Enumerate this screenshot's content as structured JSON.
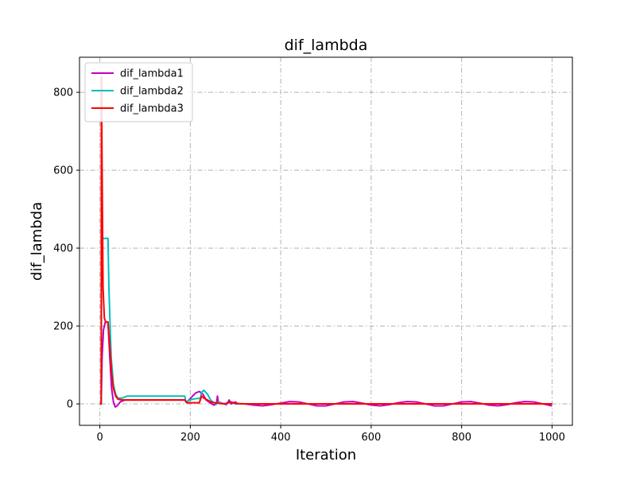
{
  "chart_data": {
    "type": "line",
    "title": "dif_lambda",
    "xlabel": "Iteration",
    "ylabel": "dif_lambda",
    "xlim": [
      -45,
      1045
    ],
    "ylim": [
      -55,
      890
    ],
    "xticks": [
      0,
      200,
      400,
      600,
      800,
      1000
    ],
    "yticks": [
      0,
      200,
      400,
      600,
      800
    ],
    "grid": true,
    "legend_position": "top-left",
    "series": [
      {
        "name": "dif_lambda1",
        "color": "#bf00bf",
        "points": [
          [
            0,
            0
          ],
          [
            3,
            0
          ],
          [
            5,
            120
          ],
          [
            8,
            190
          ],
          [
            12,
            210
          ],
          [
            18,
            210
          ],
          [
            22,
            120
          ],
          [
            26,
            40
          ],
          [
            30,
            5
          ],
          [
            34,
            -8
          ],
          [
            38,
            -5
          ],
          [
            45,
            5
          ],
          [
            55,
            10
          ],
          [
            70,
            10
          ],
          [
            100,
            10
          ],
          [
            150,
            10
          ],
          [
            188,
            10
          ],
          [
            192,
            5
          ],
          [
            197,
            10
          ],
          [
            205,
            20
          ],
          [
            212,
            28
          ],
          [
            220,
            32
          ],
          [
            228,
            25
          ],
          [
            235,
            10
          ],
          [
            245,
            2
          ],
          [
            252,
            -3
          ],
          [
            258,
            0
          ],
          [
            260,
            20
          ],
          [
            262,
            5
          ],
          [
            270,
            2
          ],
          [
            280,
            -2
          ],
          [
            286,
            10
          ],
          [
            290,
            0
          ],
          [
            300,
            5
          ],
          [
            305,
            0
          ],
          [
            320,
            0
          ],
          [
            340,
            -3
          ],
          [
            360,
            -5
          ],
          [
            380,
            -2
          ],
          [
            400,
            2
          ],
          [
            420,
            6
          ],
          [
            440,
            5
          ],
          [
            460,
            0
          ],
          [
            480,
            -5
          ],
          [
            500,
            -5
          ],
          [
            520,
            0
          ],
          [
            540,
            5
          ],
          [
            560,
            6
          ],
          [
            580,
            2
          ],
          [
            600,
            -3
          ],
          [
            620,
            -5
          ],
          [
            640,
            -2
          ],
          [
            660,
            3
          ],
          [
            680,
            6
          ],
          [
            700,
            5
          ],
          [
            720,
            0
          ],
          [
            740,
            -5
          ],
          [
            760,
            -5
          ],
          [
            780,
            0
          ],
          [
            800,
            5
          ],
          [
            820,
            6
          ],
          [
            840,
            2
          ],
          [
            860,
            -3
          ],
          [
            880,
            -5
          ],
          [
            900,
            -2
          ],
          [
            920,
            3
          ],
          [
            940,
            6
          ],
          [
            960,
            5
          ],
          [
            980,
            0
          ],
          [
            1000,
            -5
          ]
        ]
      },
      {
        "name": "dif_lambda2",
        "color": "#00bfbf",
        "points": [
          [
            0,
            0
          ],
          [
            3,
            0
          ],
          [
            4,
            425
          ],
          [
            10,
            425
          ],
          [
            18,
            425
          ],
          [
            20,
            300
          ],
          [
            25,
            120
          ],
          [
            30,
            50
          ],
          [
            35,
            25
          ],
          [
            40,
            15
          ],
          [
            50,
            15
          ],
          [
            60,
            20
          ],
          [
            70,
            20
          ],
          [
            100,
            20
          ],
          [
            150,
            20
          ],
          [
            188,
            20
          ],
          [
            190,
            5
          ],
          [
            195,
            8
          ],
          [
            205,
            12
          ],
          [
            215,
            14
          ],
          [
            222,
            14
          ],
          [
            225,
            30
          ],
          [
            230,
            35
          ],
          [
            238,
            25
          ],
          [
            245,
            10
          ],
          [
            252,
            3
          ],
          [
            258,
            0
          ],
          [
            262,
            5
          ],
          [
            270,
            1
          ],
          [
            280,
            0
          ],
          [
            290,
            5
          ],
          [
            300,
            0
          ],
          [
            320,
            0
          ],
          [
            400,
            0
          ],
          [
            500,
            0
          ],
          [
            600,
            0
          ],
          [
            700,
            0
          ],
          [
            800,
            0
          ],
          [
            900,
            0
          ],
          [
            1000,
            0
          ]
        ]
      },
      {
        "name": "dif_lambda3",
        "color": "#ff0000",
        "points": [
          [
            0,
            0
          ],
          [
            3,
            0
          ],
          [
            3.5,
            840
          ],
          [
            5,
            600
          ],
          [
            7,
            300
          ],
          [
            10,
            220
          ],
          [
            13,
            210
          ],
          [
            18,
            210
          ],
          [
            22,
            150
          ],
          [
            26,
            80
          ],
          [
            30,
            40
          ],
          [
            35,
            20
          ],
          [
            40,
            12
          ],
          [
            50,
            10
          ],
          [
            70,
            10
          ],
          [
            100,
            10
          ],
          [
            150,
            10
          ],
          [
            188,
            10
          ],
          [
            192,
            3
          ],
          [
            200,
            3
          ],
          [
            210,
            3
          ],
          [
            220,
            3
          ],
          [
            225,
            20
          ],
          [
            230,
            15
          ],
          [
            238,
            10
          ],
          [
            245,
            5
          ],
          [
            255,
            3
          ],
          [
            265,
            1
          ],
          [
            275,
            0
          ],
          [
            290,
            5
          ],
          [
            300,
            1
          ],
          [
            320,
            0
          ],
          [
            400,
            0
          ],
          [
            500,
            0
          ],
          [
            600,
            0
          ],
          [
            700,
            0
          ],
          [
            800,
            0
          ],
          [
            900,
            0
          ],
          [
            1000,
            0
          ]
        ]
      }
    ]
  }
}
